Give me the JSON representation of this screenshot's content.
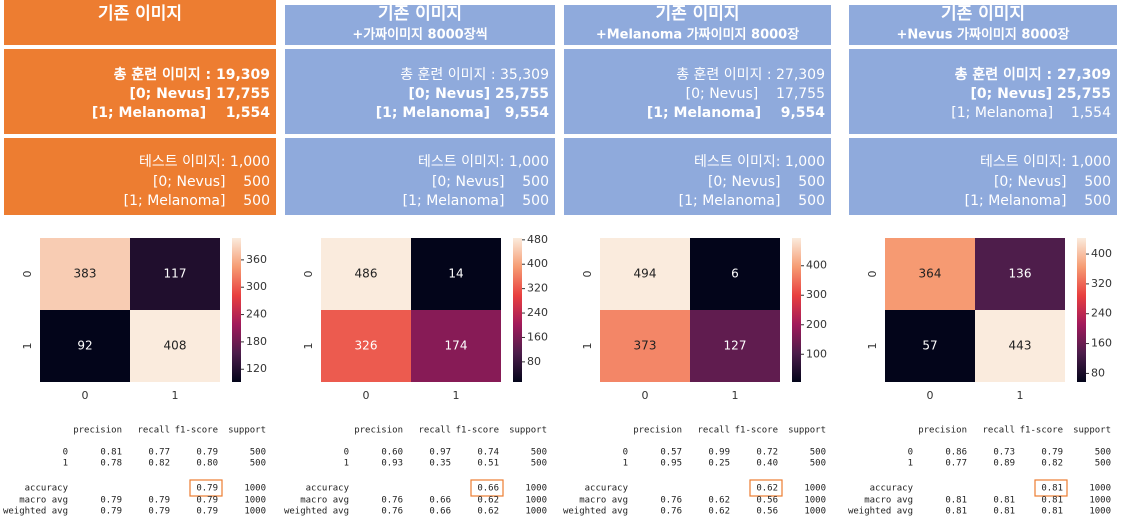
{
  "panels": [
    {
      "color": "#ed7d31",
      "header": [
        "기존 이미지"
      ],
      "train": {
        "lines": [
          "총 훈련 이미지 : 19,309",
          "[0; Nevus] 17,755",
          "[1; Melanoma]    1,554"
        ],
        "bold": [
          true,
          true,
          true
        ]
      },
      "test": {
        "lines": [
          "테스트 이미지: 1,000",
          "[0; Nevus]    500",
          "[1; Melanoma]    500"
        ],
        "bold": [
          false,
          false,
          false
        ]
      },
      "report": {
        "columns": [
          "precision",
          "recall",
          "f1-score",
          "support"
        ],
        "rows": [
          [
            "0",
            "0.81",
            "0.77",
            "0.79",
            "500"
          ],
          [
            "1",
            "0.78",
            "0.82",
            "0.80",
            "500"
          ]
        ],
        "accuracy": {
          "label": "accuracy",
          "f1": "0.79",
          "support": "1000"
        },
        "avg": [
          [
            "macro avg",
            "0.79",
            "0.79",
            "0.79",
            "1000"
          ],
          [
            "weighted avg",
            "0.79",
            "0.79",
            "0.79",
            "1000"
          ]
        ]
      }
    },
    {
      "color": "#8faadc",
      "header": [
        "기존 이미지",
        "+가짜이미지 8000장씩"
      ],
      "train": {
        "lines": [
          "총 훈련 이미지 : 35,309",
          "[0; Nevus] 25,755",
          "[1; Melanoma]   9,554"
        ],
        "bold": [
          false,
          true,
          true
        ]
      },
      "test": {
        "lines": [
          "테스트 이미지: 1,000",
          "[0; Nevus]    500",
          "[1; Melanoma]    500"
        ],
        "bold": [
          false,
          false,
          false
        ]
      },
      "report": {
        "columns": [
          "precision",
          "recall",
          "f1-score",
          "support"
        ],
        "rows": [
          [
            "0",
            "0.60",
            "0.97",
            "0.74",
            "500"
          ],
          [
            "1",
            "0.93",
            "0.35",
            "0.51",
            "500"
          ]
        ],
        "accuracy": {
          "label": "accuracy",
          "f1": "0.66",
          "support": "1000"
        },
        "avg": [
          [
            "macro avg",
            "0.76",
            "0.66",
            "0.62",
            "1000"
          ],
          [
            "weighted avg",
            "0.76",
            "0.66",
            "0.62",
            "1000"
          ]
        ]
      }
    },
    {
      "color": "#8faadc",
      "header": [
        "기존 이미지",
        "+Melanoma 가짜이미지 8000장"
      ],
      "train": {
        "lines": [
          "총 훈련 이미지 : 27,309",
          "[0; Nevus]    17,755",
          "[1; Melanoma]    9,554"
        ],
        "bold": [
          false,
          false,
          true
        ]
      },
      "test": {
        "lines": [
          "테스트 이미지: 1,000",
          "[0; Nevus]    500",
          "[1; Melanoma]    500"
        ],
        "bold": [
          false,
          false,
          false
        ]
      },
      "report": {
        "columns": [
          "precision",
          "recall",
          "f1-score",
          "support"
        ],
        "rows": [
          [
            "0",
            "0.57",
            "0.99",
            "0.72",
            "500"
          ],
          [
            "1",
            "0.95",
            "0.25",
            "0.40",
            "500"
          ]
        ],
        "accuracy": {
          "label": "accuracy",
          "f1": "0.62",
          "support": "1000"
        },
        "avg": [
          [
            "macro avg",
            "0.76",
            "0.62",
            "0.56",
            "1000"
          ],
          [
            "weighted avg",
            "0.76",
            "0.62",
            "0.56",
            "1000"
          ]
        ]
      }
    },
    {
      "color": "#8faadc",
      "header": [
        "기존 이미지",
        "+Nevus 가짜이미지 8000장"
      ],
      "train": {
        "lines": [
          "총 훈련 이미지 : 27,309",
          "[0; Nevus] 25,755",
          "[1; Melanoma]    1,554"
        ],
        "bold": [
          true,
          true,
          false
        ]
      },
      "test": {
        "lines": [
          "테스트 이미지: 1,000",
          "[0; Nevus]    500",
          "[1; Melanoma]    500"
        ],
        "bold": [
          false,
          false,
          false
        ]
      },
      "report": {
        "columns": [
          "precision",
          "recall",
          "f1-score",
          "support"
        ],
        "rows": [
          [
            "0",
            "0.86",
            "0.73",
            "0.79",
            "500"
          ],
          [
            "1",
            "0.77",
            "0.89",
            "0.82",
            "500"
          ]
        ],
        "accuracy": {
          "label": "accuracy",
          "f1": "0.81",
          "support": "1000"
        },
        "avg": [
          [
            "macro avg",
            "0.81",
            "0.81",
            "0.81",
            "1000"
          ],
          [
            "weighted avg",
            "0.81",
            "0.81",
            "0.81",
            "1000"
          ]
        ]
      }
    }
  ],
  "chart_data": [
    {
      "type": "heatmap",
      "x": [
        "0",
        "1"
      ],
      "y": [
        "0",
        "1"
      ],
      "values": [
        [
          383,
          117
        ],
        [
          92,
          408
        ]
      ],
      "clim": [
        92,
        408
      ],
      "cticks": [
        120,
        180,
        240,
        300,
        360
      ],
      "colormap": "rocket"
    },
    {
      "type": "heatmap",
      "x": [
        "0",
        "1"
      ],
      "y": [
        "0",
        "1"
      ],
      "values": [
        [
          486,
          14
        ],
        [
          326,
          174
        ]
      ],
      "clim": [
        14,
        486
      ],
      "cticks": [
        80,
        160,
        240,
        320,
        400,
        480
      ],
      "colormap": "rocket"
    },
    {
      "type": "heatmap",
      "x": [
        "0",
        "1"
      ],
      "y": [
        "0",
        "1"
      ],
      "values": [
        [
          494,
          6
        ],
        [
          373,
          127
        ]
      ],
      "clim": [
        6,
        494
      ],
      "cticks": [
        100,
        200,
        300,
        400
      ],
      "colormap": "rocket"
    },
    {
      "type": "heatmap",
      "x": [
        "0",
        "1"
      ],
      "y": [
        "0",
        "1"
      ],
      "values": [
        [
          364,
          136
        ],
        [
          57,
          443
        ]
      ],
      "clim": [
        57,
        443
      ],
      "cticks": [
        80,
        160,
        240,
        320,
        400
      ],
      "colormap": "rocket"
    }
  ]
}
